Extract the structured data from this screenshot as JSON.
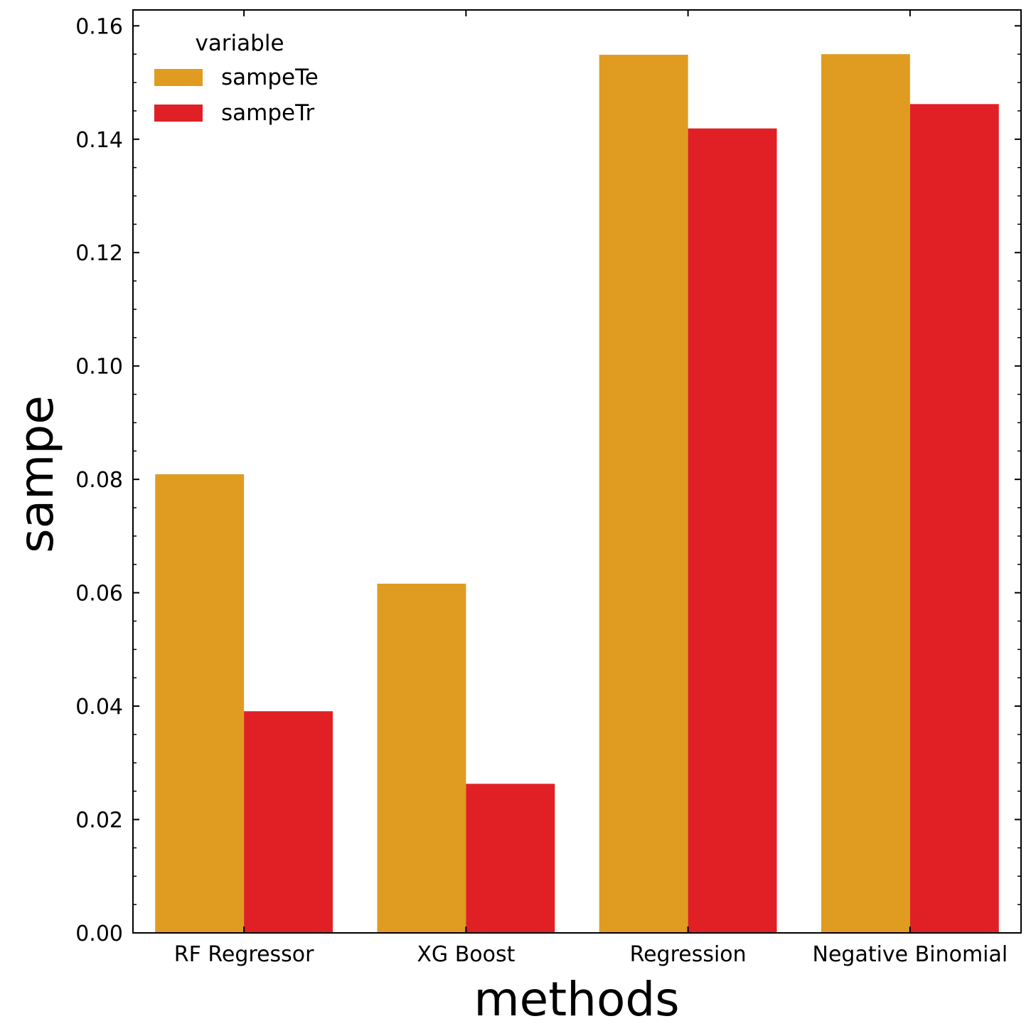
{
  "chart_data": {
    "type": "bar",
    "categories": [
      "RF Regressor",
      "XG Boost",
      "Regression",
      "Negative Binomial"
    ],
    "series": [
      {
        "name": "sampeTe",
        "color": "#e09c20",
        "values": [
          0.0809,
          0.0616,
          0.1549,
          0.155
        ]
      },
      {
        "name": "sampeTr",
        "color": "#e02024",
        "values": [
          0.0391,
          0.0263,
          0.1419,
          0.1462
        ]
      }
    ],
    "xlabel": "methods",
    "ylabel": "sampe",
    "ylim": [
      0,
      0.1628
    ],
    "yticks": [
      0.0,
      0.02,
      0.04,
      0.06,
      0.08,
      0.1,
      0.12,
      0.14,
      0.16
    ],
    "ytick_labels": [
      "0.00",
      "0.02",
      "0.04",
      "0.06",
      "0.08",
      "0.10",
      "0.12",
      "0.14",
      "0.16"
    ],
    "legend": {
      "title": "variable",
      "placement": "top-left"
    },
    "grid": false
  }
}
